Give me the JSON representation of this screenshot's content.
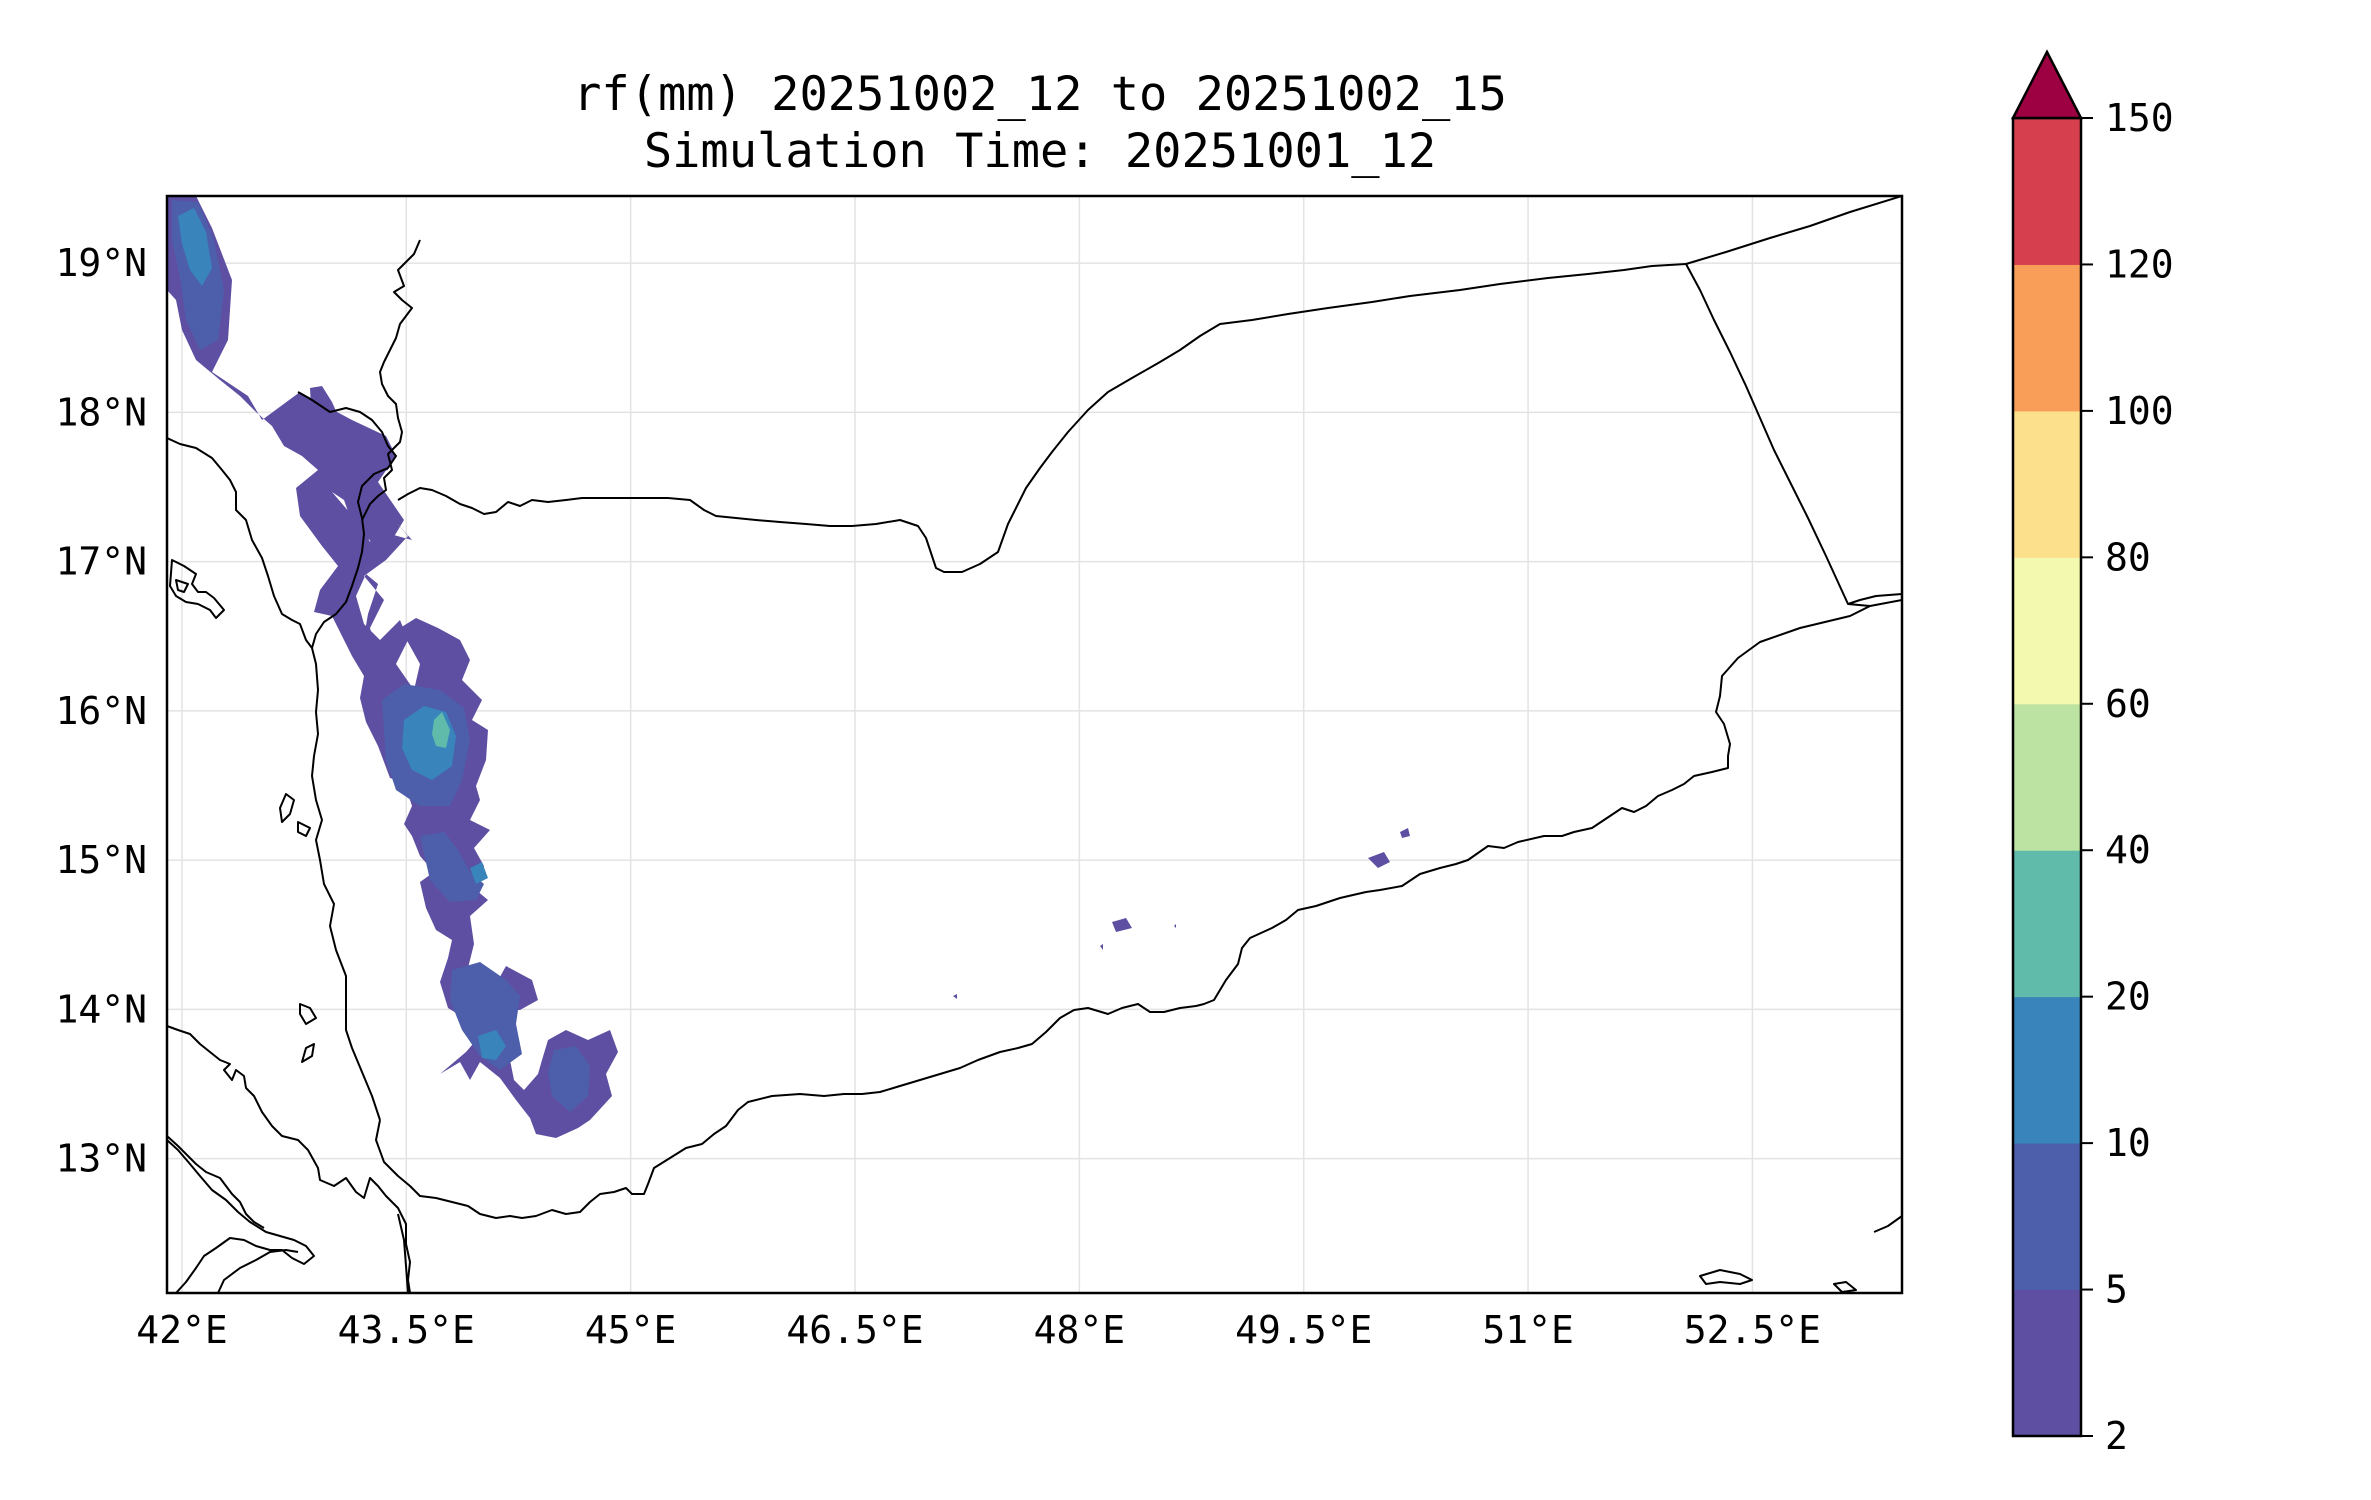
{
  "title": {
    "line1": "rf(mm) 20251002_12 to 20251002_15",
    "line2": "Simulation Time: 20251001_12"
  },
  "map": {
    "lon_range": [
      41.9,
      53.5
    ],
    "lat_range": [
      12.1,
      19.45
    ],
    "lon_ticks": [
      {
        "value": 42.0,
        "label": "42°E"
      },
      {
        "value": 43.5,
        "label": "43.5°E"
      },
      {
        "value": 45.0,
        "label": "45°E"
      },
      {
        "value": 46.5,
        "label": "46.5°E"
      },
      {
        "value": 48.0,
        "label": "48°E"
      },
      {
        "value": 49.5,
        "label": "49.5°E"
      },
      {
        "value": 51.0,
        "label": "51°E"
      },
      {
        "value": 52.5,
        "label": "52.5°E"
      }
    ],
    "lat_ticks": [
      {
        "value": 19,
        "label": "19°N"
      },
      {
        "value": 18,
        "label": "18°N"
      },
      {
        "value": 17,
        "label": "17°N"
      },
      {
        "value": 16,
        "label": "16°N"
      },
      {
        "value": 15,
        "label": "15°N"
      },
      {
        "value": 14,
        "label": "14°N"
      },
      {
        "value": 13,
        "label": "13°N"
      }
    ],
    "gridlines": true
  },
  "colorbar": {
    "levels": [
      {
        "value": 2,
        "label": "2"
      },
      {
        "value": 5,
        "label": "5"
      },
      {
        "value": 10,
        "label": "10"
      },
      {
        "value": 20,
        "label": "20"
      },
      {
        "value": 40,
        "label": "40"
      },
      {
        "value": 60,
        "label": "60"
      },
      {
        "value": 80,
        "label": "80"
      },
      {
        "value": 100,
        "label": "100"
      },
      {
        "value": 120,
        "label": "120"
      },
      {
        "value": 150,
        "label": "150"
      }
    ],
    "colors": [
      "#5e4fa2",
      "#4d5fab",
      "#3884bb",
      "#60bbab",
      "#bde3a2",
      "#f3f9ae",
      "#fde08b",
      "#f99e59",
      "#d6404e"
    ],
    "extend_color": "#9e0142",
    "extend": "max"
  },
  "colors": {
    "rain_light": "#5e4fa2",
    "rain_mid": "#4d5fab",
    "rain_heavy": "#3884bb",
    "rain_peak": "#60bbab"
  }
}
